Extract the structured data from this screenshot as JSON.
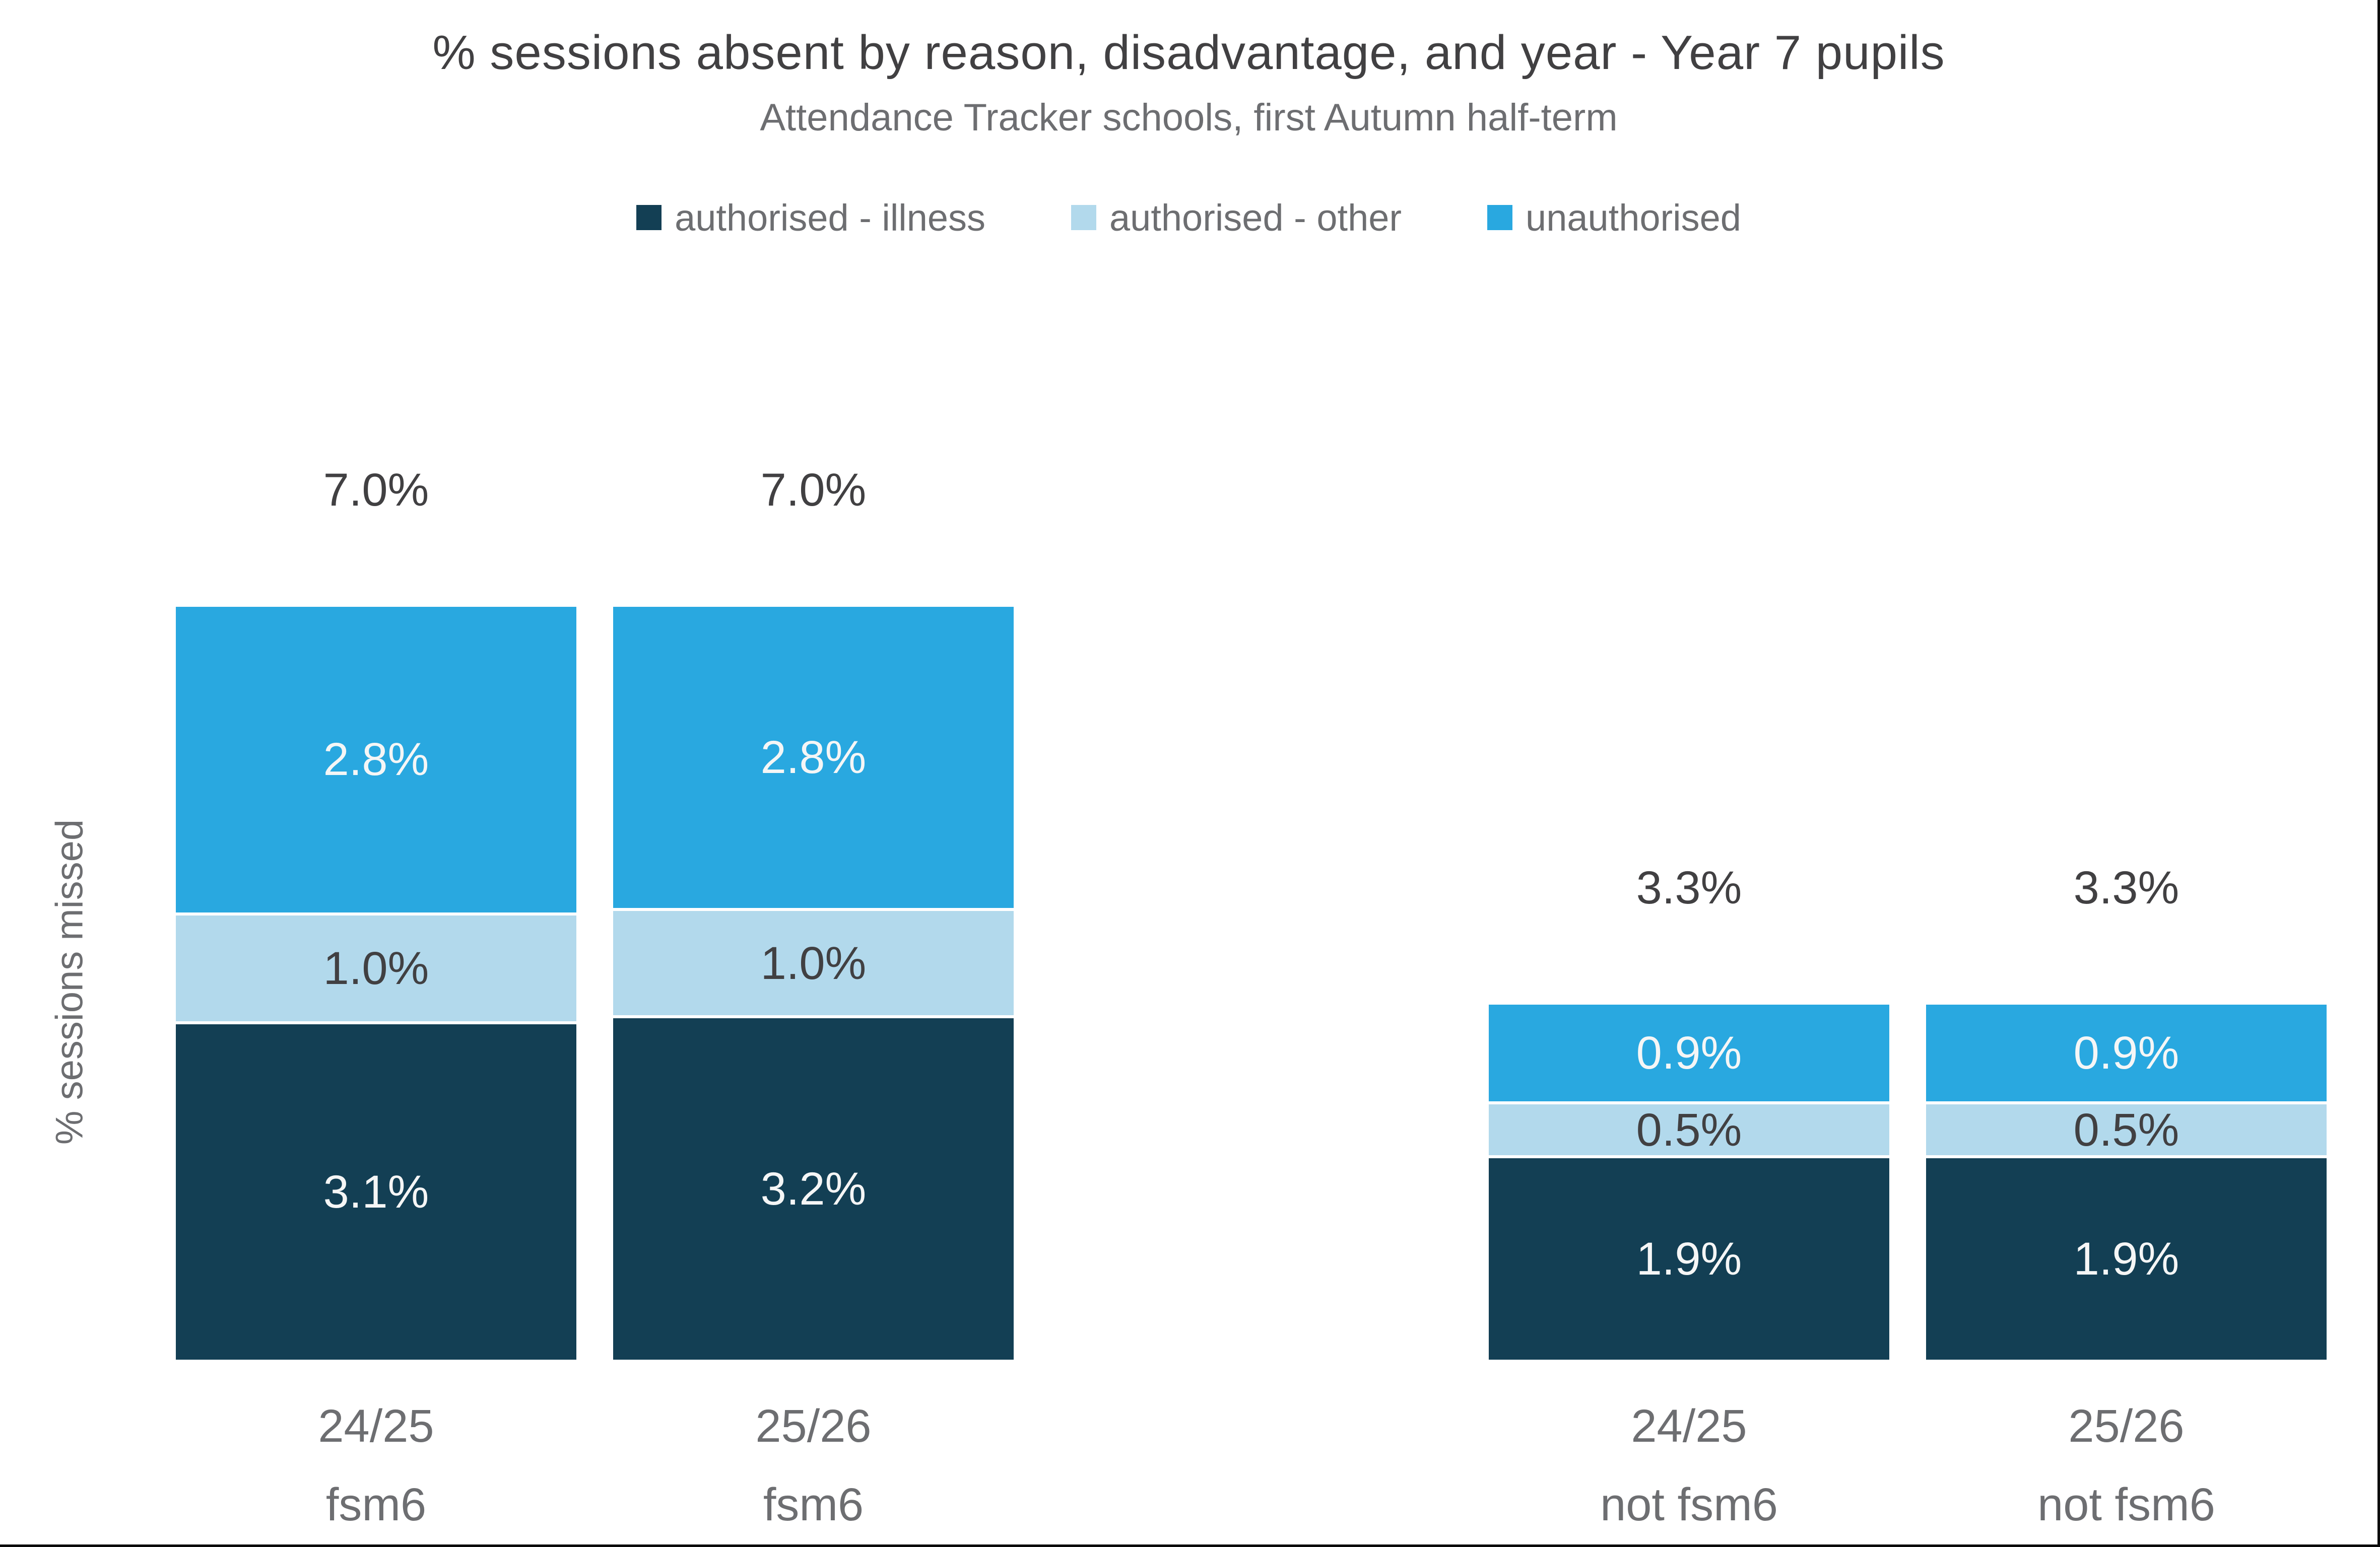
{
  "chart_data": {
    "type": "bar",
    "stacked": true,
    "title": "% sessions absent by reason, disadvantage, and year - Year 7 pupils",
    "subtitle": "Attendance Tracker schools, first Autumn half-term",
    "ylabel": "% sessions missed",
    "legend_position": "top",
    "grid": false,
    "ylim": [
      0,
      7.0
    ],
    "series": [
      {
        "name": "authorised - illness",
        "color": "#133F54",
        "label_color": "#f5f6f6"
      },
      {
        "name": "authorised - other",
        "color": "#B2D9EC",
        "label_color": "#414042"
      },
      {
        "name": "unauthorised",
        "color": "#29A8E0",
        "label_color": "#f5f6f6"
      }
    ],
    "bars": [
      {
        "year": "24/25",
        "group": "fsm6",
        "total_label": "7.0%",
        "total_value": 7.0,
        "segments": [
          {
            "series": "unauthorised",
            "value": 2.8,
            "label": "2.8%"
          },
          {
            "series": "authorised - other",
            "value": 1.0,
            "label": "1.0%"
          },
          {
            "series": "authorised - illness",
            "value": 3.1,
            "label": "3.1%"
          }
        ]
      },
      {
        "year": "25/26",
        "group": "fsm6",
        "total_label": "7.0%",
        "total_value": 7.0,
        "segments": [
          {
            "series": "unauthorised",
            "value": 2.8,
            "label": "2.8%"
          },
          {
            "series": "authorised - other",
            "value": 1.0,
            "label": "1.0%"
          },
          {
            "series": "authorised - illness",
            "value": 3.2,
            "label": "3.2%"
          }
        ]
      },
      {
        "year": "24/25",
        "group": "not fsm6",
        "total_label": "3.3%",
        "total_value": 3.3,
        "segments": [
          {
            "series": "unauthorised",
            "value": 0.9,
            "label": "0.9%"
          },
          {
            "series": "authorised - other",
            "value": 0.5,
            "label": "0.5%"
          },
          {
            "series": "authorised - illness",
            "value": 1.9,
            "label": "1.9%"
          }
        ]
      },
      {
        "year": "25/26",
        "group": "not fsm6",
        "total_label": "3.3%",
        "total_value": 3.3,
        "segments": [
          {
            "series": "unauthorised",
            "value": 0.9,
            "label": "0.9%"
          },
          {
            "series": "authorised - other",
            "value": 0.5,
            "label": "0.5%"
          },
          {
            "series": "authorised - illness",
            "value": 1.9,
            "label": "1.9%"
          }
        ]
      }
    ]
  }
}
